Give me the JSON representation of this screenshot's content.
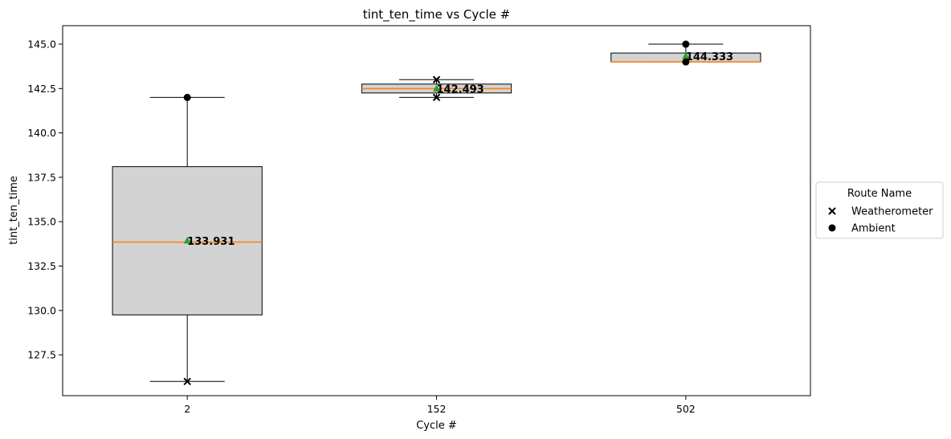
{
  "chart_data": {
    "type": "box",
    "title": "tint_ten_time vs Cycle #",
    "xlabel": "Cycle #",
    "ylabel": "tint_ten_time",
    "ylim": [
      125.2,
      146.0
    ],
    "yticks": [
      127.5,
      130.0,
      132.5,
      135.0,
      137.5,
      140.0,
      142.5,
      145.0
    ],
    "ytick_labels": [
      "127.5",
      "130.0",
      "132.5",
      "135.0",
      "137.5",
      "140.0",
      "142.5",
      "145.0"
    ],
    "categories": [
      "2",
      "152",
      "502"
    ],
    "boxes": [
      {
        "category": "2",
        "whisker_low": 126.0,
        "q1": 129.75,
        "median": 133.85,
        "q3": 138.1,
        "whisker_high": 142.0,
        "mean": 133.931,
        "mean_label": "133.931"
      },
      {
        "category": "152",
        "whisker_low": 142.0,
        "q1": 142.25,
        "median": 142.5,
        "q3": 142.75,
        "whisker_high": 143.0,
        "mean": 142.493,
        "mean_label": "142.493"
      },
      {
        "category": "502",
        "whisker_low": 144.0,
        "q1": 144.0,
        "median": 144.0,
        "q3": 144.5,
        "whisker_high": 145.0,
        "mean": 144.333,
        "mean_label": "144.333"
      }
    ],
    "points": [
      {
        "category": "2",
        "value": 126.0,
        "route": "Weatherometer"
      },
      {
        "category": "2",
        "value": 142.0,
        "route": "Ambient"
      },
      {
        "category": "152",
        "value": 143.0,
        "route": "Weatherometer"
      },
      {
        "category": "152",
        "value": 142.0,
        "route": "Weatherometer"
      },
      {
        "category": "502",
        "value": 145.0,
        "route": "Ambient"
      },
      {
        "category": "502",
        "value": 144.0,
        "route": "Ambient"
      }
    ],
    "legend": {
      "title": "Route Name",
      "placement": "outside-right",
      "entries": [
        {
          "label": "Weatherometer",
          "marker": "x"
        },
        {
          "label": "Ambient",
          "marker": "circle"
        }
      ]
    },
    "colors": {
      "box_fill": "#d3d3d3",
      "median": "#ff7f0e",
      "mean_marker": "#2ca02c",
      "stroke": "#000000"
    },
    "grid": false
  }
}
